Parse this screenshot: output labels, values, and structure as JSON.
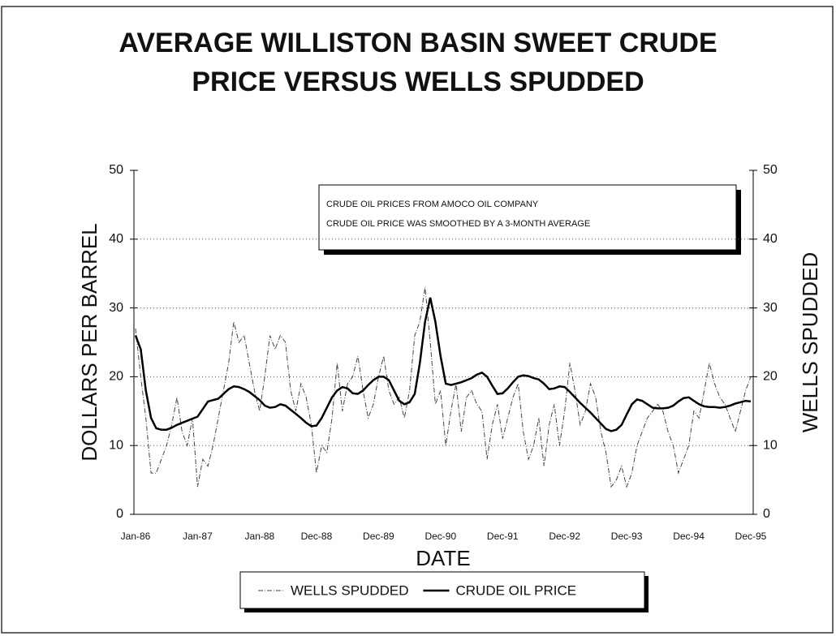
{
  "chart_data": {
    "type": "line",
    "title": [
      "AVERAGE WILLISTON BASIN SWEET CRUDE",
      "PRICE VERSUS WELLS SPUDDED"
    ],
    "y_label": "DOLLARS PER BARREL",
    "y2_label": "WELLS SPUDDED",
    "x_label": "DATE",
    "annotations": [
      "CRUDE OIL PRICES FROM AMOCO OIL COMPANY",
      "CRUDE OIL PRICE WAS SMOOTHED BY A 3-MONTH AVERAGE"
    ],
    "categories": [
      "Jan-86",
      null,
      null,
      null,
      null,
      null,
      null,
      null,
      null,
      null,
      null,
      null,
      "Jan-87",
      null,
      null,
      null,
      null,
      null,
      null,
      null,
      null,
      null,
      null,
      null,
      "Jan-88",
      null,
      null,
      null,
      null,
      null,
      null,
      null,
      null,
      null,
      null,
      "Dec-88",
      null,
      null,
      null,
      null,
      null,
      null,
      null,
      null,
      null,
      null,
      null,
      "Dec-89",
      null,
      null,
      null,
      null,
      null,
      null,
      null,
      null,
      null,
      null,
      null,
      "Dec-90",
      null,
      null,
      null,
      null,
      null,
      null,
      null,
      null,
      null,
      null,
      null,
      "Dec-91",
      null,
      null,
      null,
      null,
      null,
      null,
      null,
      null,
      null,
      null,
      null,
      "Dec-92",
      null,
      null,
      null,
      null,
      null,
      null,
      null,
      null,
      null,
      null,
      null,
      "Dec-93",
      null,
      null,
      null,
      null,
      null,
      null,
      null,
      null,
      null,
      null,
      null,
      "Dec-94",
      null,
      null,
      null,
      null,
      null,
      null,
      null,
      null,
      null,
      null,
      null,
      "Dec-95"
    ],
    "series": [
      {
        "name": "WELLS SPUDDED",
        "color": "#444444",
        "line_style": "dashdot",
        "axis": "y2",
        "values": [
          27,
          20,
          14,
          6,
          6,
          8,
          10,
          13,
          17,
          12,
          10,
          14,
          4,
          8,
          7,
          10,
          14,
          18,
          22,
          28,
          25,
          26,
          22,
          18,
          15,
          20,
          26,
          24,
          26,
          25,
          18,
          15,
          19,
          17,
          13,
          6,
          10,
          9,
          14,
          22,
          15,
          19,
          20,
          23,
          18,
          14,
          16,
          20,
          23,
          18,
          16,
          17,
          14,
          18,
          26,
          28,
          33,
          25,
          16,
          18,
          10,
          15,
          19,
          12,
          17,
          18,
          16,
          15,
          8,
          13,
          16,
          11,
          14,
          17,
          19,
          12,
          8,
          10,
          14,
          7,
          13,
          16,
          10,
          15,
          22,
          18,
          13,
          15,
          19,
          17,
          12,
          9,
          4,
          5,
          7,
          4,
          6,
          10,
          12,
          14,
          15,
          16,
          15,
          12,
          10,
          6,
          8,
          10,
          15,
          14,
          18,
          22,
          19,
          17,
          16,
          14,
          12,
          15,
          18,
          20
        ]
      },
      {
        "name": "CRUDE OIL PRICE",
        "color": "#000000",
        "line_style": "solid",
        "values": [
          26,
          24,
          18,
          14,
          12.5,
          12.3,
          12.3,
          12.6,
          13,
          13.3,
          13.6,
          13.9,
          14.2,
          15.3,
          16.4,
          16.6,
          16.8,
          17.5,
          18.2,
          18.6,
          18.5,
          18.2,
          17.8,
          17.2,
          16.6,
          15.8,
          15.5,
          15.6,
          16,
          15.8,
          15.2,
          14.6,
          14,
          13.3,
          12.8,
          12.9,
          14,
          15.5,
          17,
          18,
          18.5,
          18.3,
          17.6,
          17.5,
          18,
          18.8,
          19.5,
          20,
          20,
          19.5,
          18,
          16.5,
          16,
          16.3,
          17.5,
          22,
          28,
          31.5,
          28,
          23,
          19,
          18.8,
          19,
          19.2,
          19.5,
          19.8,
          20.3,
          20.6,
          20,
          18.7,
          17.5,
          17.6,
          18.3,
          19.2,
          20,
          20.2,
          20.1,
          19.8,
          19.6,
          19,
          18.2,
          18.3,
          18.6,
          18.5,
          17.8,
          17,
          16.2,
          15.5,
          14.8,
          14,
          13.2,
          12.4,
          12.1,
          12.3,
          13,
          14.5,
          16,
          16.7,
          16.5,
          16,
          15.5,
          15.4,
          15.4,
          15.5,
          15.8,
          16.4,
          16.9,
          17,
          16.5,
          16,
          15.7,
          15.6,
          15.6,
          15.5,
          15.6,
          15.8,
          16.1,
          16.3,
          16.5,
          16.4
        ]
      }
    ],
    "ylim": [
      0,
      50
    ],
    "yticks": [
      0,
      10,
      20,
      30,
      40,
      50
    ],
    "y2lim": [
      0,
      50
    ],
    "y2ticks": [
      0,
      10,
      20,
      30,
      40,
      50
    ],
    "grid": true,
    "legend": "bottom"
  }
}
